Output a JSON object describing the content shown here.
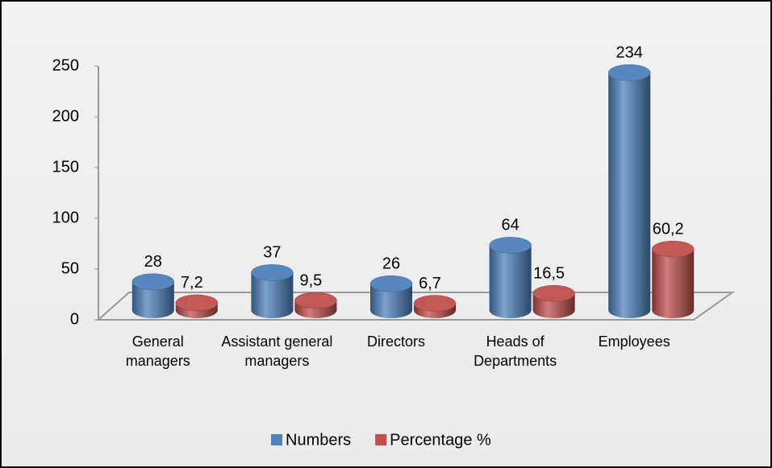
{
  "chart_data": {
    "type": "bar3d",
    "categories": [
      "General managers",
      "Assistant general managers",
      "Directors",
      "Heads of Departments",
      "Employees"
    ],
    "series": [
      {
        "name": "Numbers",
        "color": "#4f81bd",
        "values": [
          28,
          37,
          26,
          64,
          234
        ]
      },
      {
        "name": "Percentage %",
        "color": "#c0504d",
        "values": [
          7.2,
          9.5,
          6.7,
          16.5,
          60.2
        ],
        "value_labels": [
          "7,2",
          "9,5",
          "6,7",
          "16,5",
          "60,2"
        ]
      }
    ],
    "ylim": [
      0,
      250
    ],
    "yticks": [
      0,
      50,
      100,
      150,
      200,
      250
    ],
    "grid": false,
    "legend": "bottom"
  }
}
